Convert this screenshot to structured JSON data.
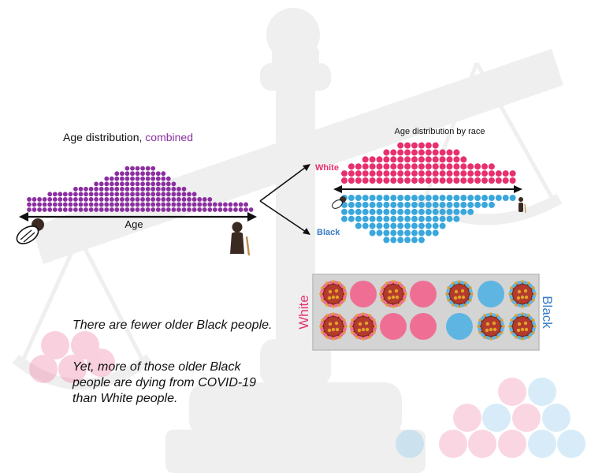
{
  "combined": {
    "title_prefix": "Age distribution, ",
    "title_accent": "combined",
    "axis_label": "Age",
    "dot_color": "#8b2fa0",
    "column_heights": [
      3,
      3,
      3,
      3,
      4,
      4,
      4,
      4,
      4,
      5,
      5,
      5,
      5,
      6,
      6,
      7,
      7,
      8,
      8,
      9,
      9,
      9,
      9,
      9,
      9,
      8,
      8,
      7,
      6,
      5,
      5,
      4,
      4,
      3,
      3,
      3,
      2,
      2,
      2,
      2,
      2,
      2,
      2,
      1
    ]
  },
  "by_race": {
    "title": "Age distribution by race",
    "white_label": "White",
    "black_label": "Black",
    "white_color": "#e8306e",
    "black_color": "#3aa7dc",
    "white_column_heights": [
      2,
      3,
      3,
      4,
      4,
      4,
      5,
      5,
      6,
      6,
      6,
      6,
      6,
      6,
      5,
      5,
      5,
      4,
      3,
      3,
      3,
      3,
      2,
      2,
      2
    ],
    "black_column_heights": [
      4,
      4,
      5,
      5,
      6,
      6,
      7,
      7,
      7,
      7,
      7,
      7,
      6,
      6,
      5,
      4,
      4,
      3,
      3,
      2,
      2,
      2,
      1,
      1,
      1
    ]
  },
  "comparison": {
    "white_label": "White",
    "black_label": "Black",
    "white_cells": [
      [
        "virus",
        "plain",
        "virus",
        "plain"
      ],
      [
        "virus",
        "virus",
        "plain",
        "plain"
      ]
    ],
    "black_cells": [
      [
        "virus",
        "plain",
        "virus"
      ],
      [
        "plain",
        "virus",
        "virus"
      ]
    ]
  },
  "message": {
    "line1": "There are fewer older Black people.",
    "line2": "Yet, more of those older Black",
    "line3": "people are dying from COVID-19",
    "line4": "than White people."
  },
  "icons": [
    "baby-icon",
    "elderly-person-icon",
    "virus-icon",
    "scale-icon"
  ]
}
